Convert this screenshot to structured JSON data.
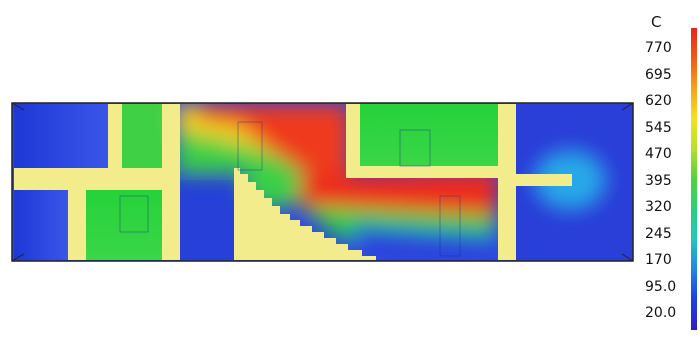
{
  "legend": {
    "unit": "C",
    "values": [
      "770",
      "695",
      "620",
      "545",
      "470",
      "395",
      "320",
      "245",
      "170",
      "95.0",
      "20.0"
    ],
    "color_stops": [
      "#e8241c",
      "#f05a16",
      "#f7a21a",
      "#f2e21e",
      "#b8e02a",
      "#4fd43a",
      "#2ad07a",
      "#22c6c0",
      "#1e86e6",
      "#1f3fe6",
      "#2a20c8"
    ]
  },
  "colors": {
    "wall": "#f2ec8c",
    "cold": "#2a3ed8",
    "warm": "#2fd23e",
    "hot": "#ea2a1c"
  }
}
